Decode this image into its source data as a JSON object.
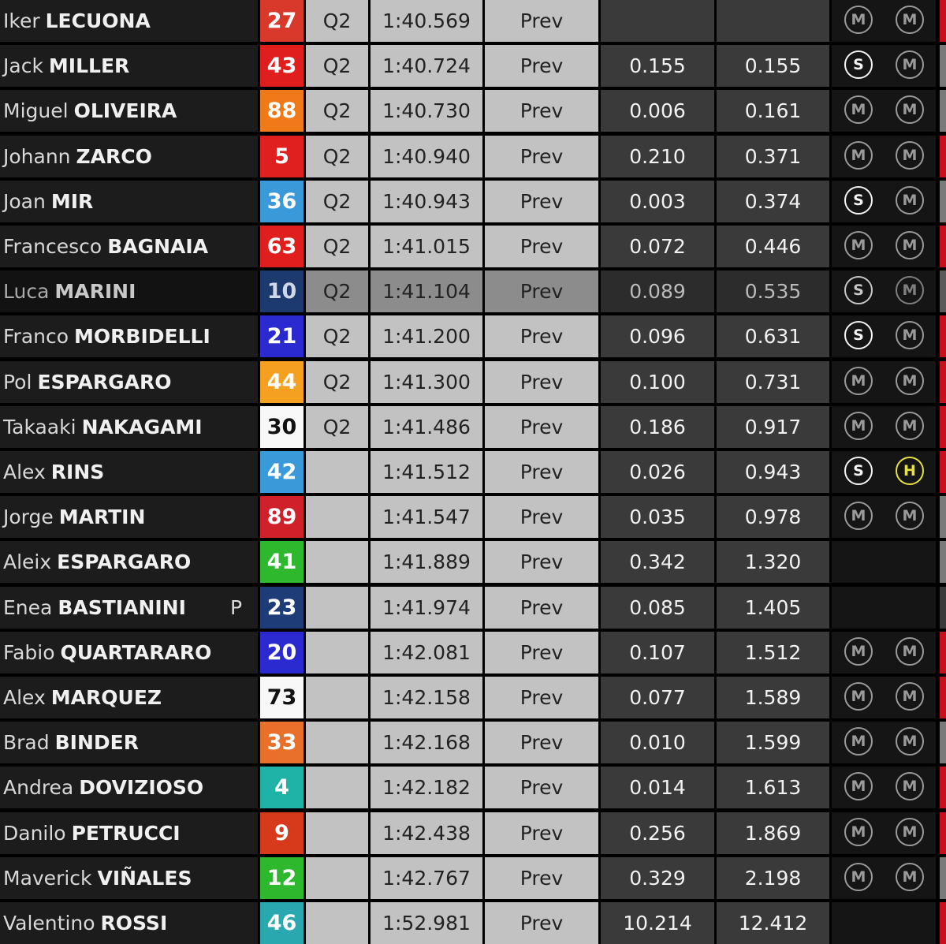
{
  "columns_prev_label": "Prev",
  "riders": [
    {
      "first": "Iker",
      "last": "LECUONA",
      "number": "27",
      "color": "#d8392a",
      "session": "Q2",
      "time": "1:40.569",
      "prev": "Prev",
      "gap": "",
      "gap_first": "",
      "tyre_front": "M",
      "tyre_rear": "M",
      "stripe": "#c8101a"
    },
    {
      "first": "Jack",
      "last": "MILLER",
      "number": "43",
      "color": "#e01e1e",
      "session": "Q2",
      "time": "1:40.724",
      "prev": "Prev",
      "gap": "0.155",
      "gap_first": "0.155",
      "tyre_front": "S",
      "tyre_rear": "M",
      "stripe": "#7a7a7a"
    },
    {
      "first": "Miguel",
      "last": "OLIVEIRA",
      "number": "88",
      "color": "#f07a1a",
      "session": "Q2",
      "time": "1:40.730",
      "prev": "Prev",
      "gap": "0.006",
      "gap_first": "0.161",
      "tyre_front": "M",
      "tyre_rear": "M",
      "stripe": "#7a7a7a"
    },
    {
      "first": "Johann",
      "last": "ZARCO",
      "number": "5",
      "color": "#e0201e",
      "session": "Q2",
      "time": "1:40.940",
      "prev": "Prev",
      "gap": "0.210",
      "gap_first": "0.371",
      "tyre_front": "M",
      "tyre_rear": "M",
      "stripe": "#c8101a"
    },
    {
      "first": "Joan",
      "last": "MIR",
      "number": "36",
      "color": "#3a9ad9",
      "session": "Q2",
      "time": "1:40.943",
      "prev": "Prev",
      "gap": "0.003",
      "gap_first": "0.374",
      "tyre_front": "S",
      "tyre_rear": "M",
      "stripe": "#7a7a7a"
    },
    {
      "first": "Francesco",
      "last": "BAGNAIA",
      "number": "63",
      "color": "#e01e1e",
      "session": "Q2",
      "time": "1:41.015",
      "prev": "Prev",
      "gap": "0.072",
      "gap_first": "0.446",
      "tyre_front": "M",
      "tyre_rear": "M",
      "stripe": "#c8101a"
    },
    {
      "first": "Luca",
      "last": "MARINI",
      "number": "10",
      "color": "#1d3a6e",
      "session": "Q2",
      "time": "1:41.104",
      "prev": "Prev",
      "gap": "0.089",
      "gap_first": "0.535",
      "tyre_front": "S",
      "tyre_rear": "M",
      "stripe": "#5a5a5a",
      "dim": true
    },
    {
      "first": "Franco",
      "last": "MORBIDELLI",
      "number": "21",
      "color": "#2a2ad0",
      "session": "Q2",
      "time": "1:41.200",
      "prev": "Prev",
      "gap": "0.096",
      "gap_first": "0.631",
      "tyre_front": "S",
      "tyre_rear": "M",
      "stripe": "#c8101a"
    },
    {
      "first": "Pol",
      "last": "ESPARGARO",
      "number": "44",
      "color": "#f5a020",
      "session": "Q2",
      "time": "1:41.300",
      "prev": "Prev",
      "gap": "0.100",
      "gap_first": "0.731",
      "tyre_front": "M",
      "tyre_rear": "M",
      "stripe": "#c8101a"
    },
    {
      "first": "Takaaki",
      "last": "NAKAGAMI",
      "number": "30",
      "color": "#f8f8f8",
      "text": "#111",
      "session": "Q2",
      "time": "1:41.486",
      "prev": "Prev",
      "gap": "0.186",
      "gap_first": "0.917",
      "tyre_front": "M",
      "tyre_rear": "M",
      "stripe": "#c8101a"
    },
    {
      "first": "Alex",
      "last": "RINS",
      "number": "42",
      "color": "#3a9ad9",
      "session": "",
      "time": "1:41.512",
      "prev": "Prev",
      "gap": "0.026",
      "gap_first": "0.943",
      "tyre_front": "S",
      "tyre_rear": "H",
      "stripe": "#c8101a"
    },
    {
      "first": "Jorge",
      "last": "MARTIN",
      "number": "89",
      "color": "#d0202a",
      "session": "",
      "time": "1:41.547",
      "prev": "Prev",
      "gap": "0.035",
      "gap_first": "0.978",
      "tyre_front": "M",
      "tyre_rear": "M",
      "stripe": "#7a7a7a"
    },
    {
      "first": "Aleix",
      "last": "ESPARGARO",
      "number": "41",
      "color": "#2db82d",
      "session": "",
      "time": "1:41.889",
      "prev": "Prev",
      "gap": "0.342",
      "gap_first": "1.320",
      "tyre_front": "",
      "tyre_rear": "",
      "stripe": "#7a7a7a"
    },
    {
      "first": "Enea",
      "last": "BASTIANINI",
      "flag": "P",
      "number": "23",
      "color": "#1e3c78",
      "session": "",
      "time": "1:41.974",
      "prev": "Prev",
      "gap": "0.085",
      "gap_first": "1.405",
      "tyre_front": "",
      "tyre_rear": "",
      "stripe": "#3a3a3a"
    },
    {
      "first": "Fabio",
      "last": "QUARTARARO",
      "number": "20",
      "color": "#2a2ad0",
      "session": "",
      "time": "1:42.081",
      "prev": "Prev",
      "gap": "0.107",
      "gap_first": "1.512",
      "tyre_front": "M",
      "tyre_rear": "M",
      "stripe": "#c8101a"
    },
    {
      "first": "Alex",
      "last": "MARQUEZ",
      "number": "73",
      "color": "#f8f8f8",
      "text": "#111",
      "session": "",
      "time": "1:42.158",
      "prev": "Prev",
      "gap": "0.077",
      "gap_first": "1.589",
      "tyre_front": "M",
      "tyre_rear": "M",
      "stripe": "#c8101a"
    },
    {
      "first": "Brad",
      "last": "BINDER",
      "number": "33",
      "color": "#e8702a",
      "session": "",
      "time": "1:42.168",
      "prev": "Prev",
      "gap": "0.010",
      "gap_first": "1.599",
      "tyre_front": "M",
      "tyre_rear": "M",
      "stripe": "#7a7a7a"
    },
    {
      "first": "Andrea",
      "last": "DOVIZIOSO",
      "number": "4",
      "color": "#1fb3a8",
      "session": "",
      "time": "1:42.182",
      "prev": "Prev",
      "gap": "0.014",
      "gap_first": "1.613",
      "tyre_front": "M",
      "tyre_rear": "M",
      "stripe": "#c8101a"
    },
    {
      "first": "Danilo",
      "last": "PETRUCCI",
      "number": "9",
      "color": "#d63a1a",
      "session": "",
      "time": "1:42.438",
      "prev": "Prev",
      "gap": "0.256",
      "gap_first": "1.869",
      "tyre_front": "M",
      "tyre_rear": "M",
      "stripe": "#c8101a"
    },
    {
      "first": "Maverick",
      "last": "VIÑALES",
      "number": "12",
      "color": "#2db82d",
      "session": "",
      "time": "1:42.767",
      "prev": "Prev",
      "gap": "0.329",
      "gap_first": "2.198",
      "tyre_front": "M",
      "tyre_rear": "M",
      "stripe": "#7a7a7a"
    },
    {
      "first": "Valentino",
      "last": "ROSSI",
      "number": "46",
      "color": "#2aa8b0",
      "session": "",
      "time": "1:52.981",
      "prev": "Prev",
      "gap": "10.214",
      "gap_first": "12.412",
      "tyre_front": "",
      "tyre_rear": "",
      "stripe": "#c8101a"
    }
  ]
}
